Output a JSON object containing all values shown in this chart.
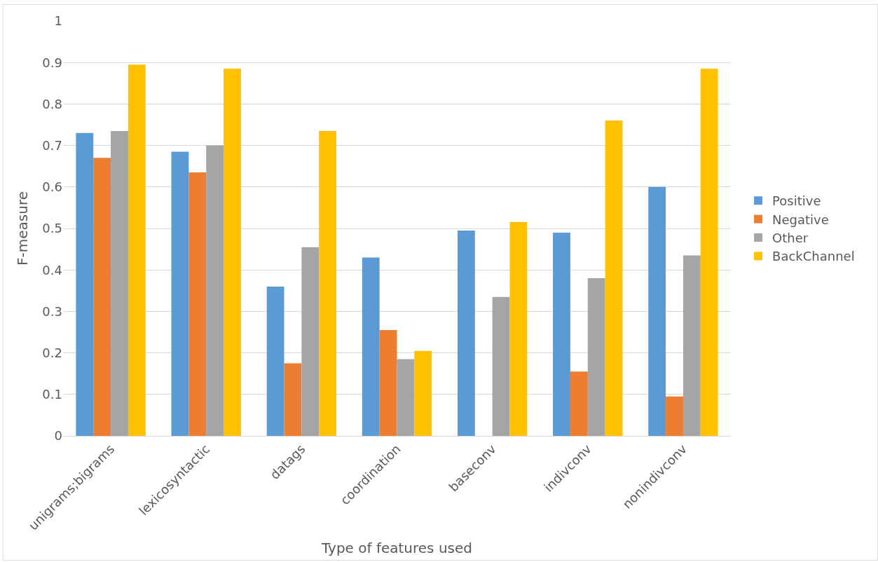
{
  "chart_data": {
    "type": "bar",
    "xlabel": "Type of features used",
    "ylabel": "F-measure",
    "categories": [
      "unigrams;bigrams",
      "lexicosyntactic",
      "datags",
      "coordination",
      "baseconv",
      "indivconv",
      "nonindivconv"
    ],
    "series": [
      {
        "name": "Positive",
        "color": "#5b9bd5",
        "values": [
          0.73,
          0.685,
          0.36,
          0.43,
          0.495,
          0.49,
          0.6
        ]
      },
      {
        "name": "Negative",
        "color": "#ed7d31",
        "values": [
          0.67,
          0.635,
          0.175,
          0.255,
          0,
          0.155,
          0.095
        ]
      },
      {
        "name": "Other",
        "color": "#a5a5a5",
        "values": [
          0.735,
          0.7,
          0.455,
          0.185,
          0.335,
          0.38,
          0.435
        ]
      },
      {
        "name": "BackChannel",
        "color": "#ffc000",
        "values": [
          0.895,
          0.885,
          0.735,
          0.205,
          0.515,
          0.76,
          0.885
        ]
      }
    ],
    "ylim": [
      0,
      1
    ],
    "yticks": [
      0,
      0.1,
      0.2,
      0.3,
      0.4,
      0.5,
      0.6,
      0.7,
      0.8,
      0.9,
      1
    ],
    "grid": "y",
    "legend": "right"
  }
}
